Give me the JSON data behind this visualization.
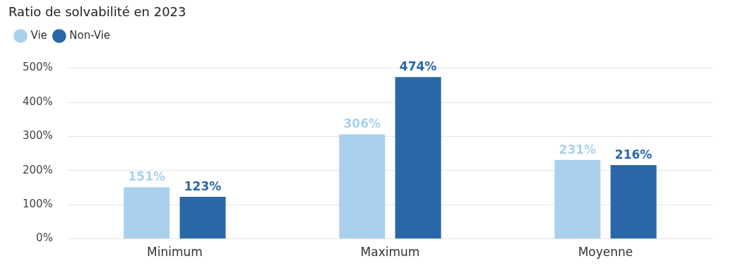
{
  "chart_data": {
    "type": "bar",
    "title": "Ratio de solvabilité en 2023",
    "categories": [
      "Minimum",
      "Maximum",
      "Moyenne"
    ],
    "series": [
      {
        "name": "Vie",
        "color": "#a9d1ee",
        "values": [
          151,
          306,
          231
        ],
        "value_labels": [
          "151%",
          "306%",
          "231%"
        ]
      },
      {
        "name": "Non-Vie",
        "color": "#2a67a7",
        "values": [
          123,
          474,
          216
        ],
        "value_labels": [
          "123%",
          "474%",
          "216%"
        ]
      }
    ],
    "ylim": [
      0,
      500
    ],
    "yticks": [
      {
        "value": 0,
        "label": "0%"
      },
      {
        "value": 100,
        "label": "100%"
      },
      {
        "value": 200,
        "label": "200%"
      },
      {
        "value": 300,
        "label": "300%"
      },
      {
        "value": 400,
        "label": "400%"
      },
      {
        "value": 500,
        "label": "500%"
      }
    ],
    "grid": "y",
    "legend": "top left"
  }
}
